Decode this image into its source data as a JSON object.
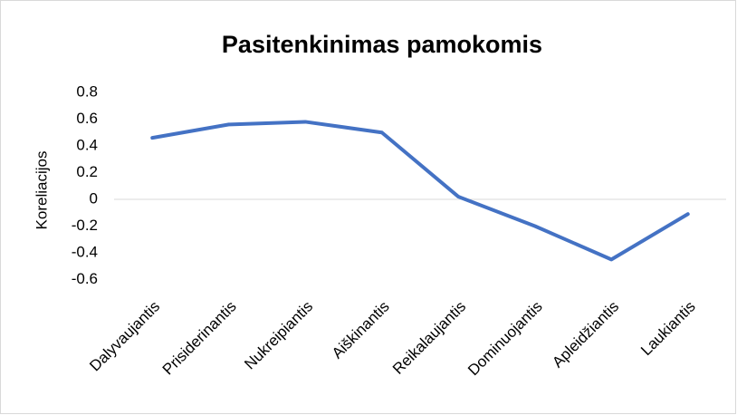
{
  "chart_data": {
    "type": "line",
    "title": "Pasitenkinimas pamokomis",
    "ylabel": "Koreliacijos",
    "categories": [
      "Dalyvaujantis",
      "Prisiderinantis",
      "Nukreipiantis",
      "Aiškinantis",
      "Reikalaujantis",
      "Dominuojantis",
      "Apleidžiantis",
      "Laukiantis"
    ],
    "values": [
      0.46,
      0.56,
      0.58,
      0.5,
      0.02,
      -0.2,
      -0.45,
      -0.11
    ],
    "color": "#4472c4",
    "ylim": [
      -0.6,
      0.8
    ],
    "yticks": [
      0.8,
      0.6,
      0.4,
      0.2,
      0,
      -0.2,
      -0.4,
      -0.6
    ],
    "grid": false
  }
}
